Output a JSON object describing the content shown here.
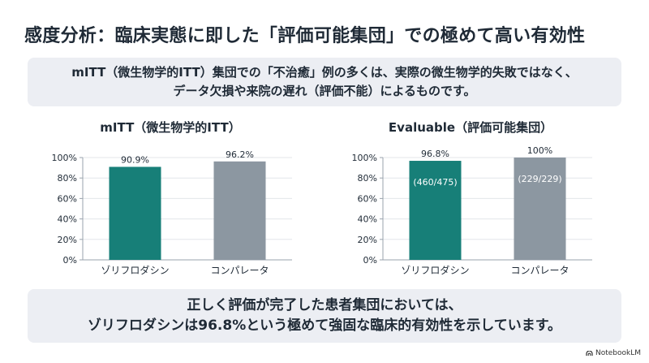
{
  "title": "感度分析：臨床実態に即した「評価可能集団」での極めて高い有効性",
  "top_box": {
    "line1": "mITT（微生物学的ITT）集団での「不治癒」例の多くは、実際の微生物学的失敗ではなく、",
    "line2": "データ欠損や来院の遅れ（評価不能）によるものです。"
  },
  "bottom_box": {
    "line1": "正しく評価が完了した患者集団においては、",
    "line2": "ゾリフロダシンは96.8%という極めて強固な臨床的有効性を示しています。"
  },
  "colors": {
    "teal": "#177f78",
    "gray": "#8c97a1",
    "axis": "#9aa3ad",
    "grid": "#e3e6ea"
  },
  "logo": {
    "text": "NotebookLM"
  },
  "chart_data": [
    {
      "type": "bar",
      "title": "mITT（微生物学的ITT）",
      "categories": [
        "ゾリフロダシン",
        "コンパレータ"
      ],
      "values": [
        90.9,
        96.2
      ],
      "value_labels": [
        "90.9%",
        "96.2%"
      ],
      "inner_labels": [
        "",
        ""
      ],
      "colors": [
        "#177f78",
        "#8c97a1"
      ],
      "ylim": [
        0,
        100
      ],
      "yticks": [
        "0%",
        "20%",
        "40%",
        "60%",
        "80%",
        "100%"
      ],
      "xlabel": "",
      "ylabel": ""
    },
    {
      "type": "bar",
      "title": "Evaluable（評価可能集団）",
      "categories": [
        "ゾリフロダシン",
        "コンパレータ"
      ],
      "values": [
        96.8,
        100
      ],
      "value_labels": [
        "96.8%",
        "100%"
      ],
      "inner_labels": [
        "(460/475)",
        "(229/229)"
      ],
      "colors": [
        "#177f78",
        "#8c97a1"
      ],
      "ylim": [
        0,
        100
      ],
      "yticks": [
        "0%",
        "20%",
        "40%",
        "60%",
        "80%",
        "100%"
      ],
      "xlabel": "",
      "ylabel": ""
    }
  ]
}
